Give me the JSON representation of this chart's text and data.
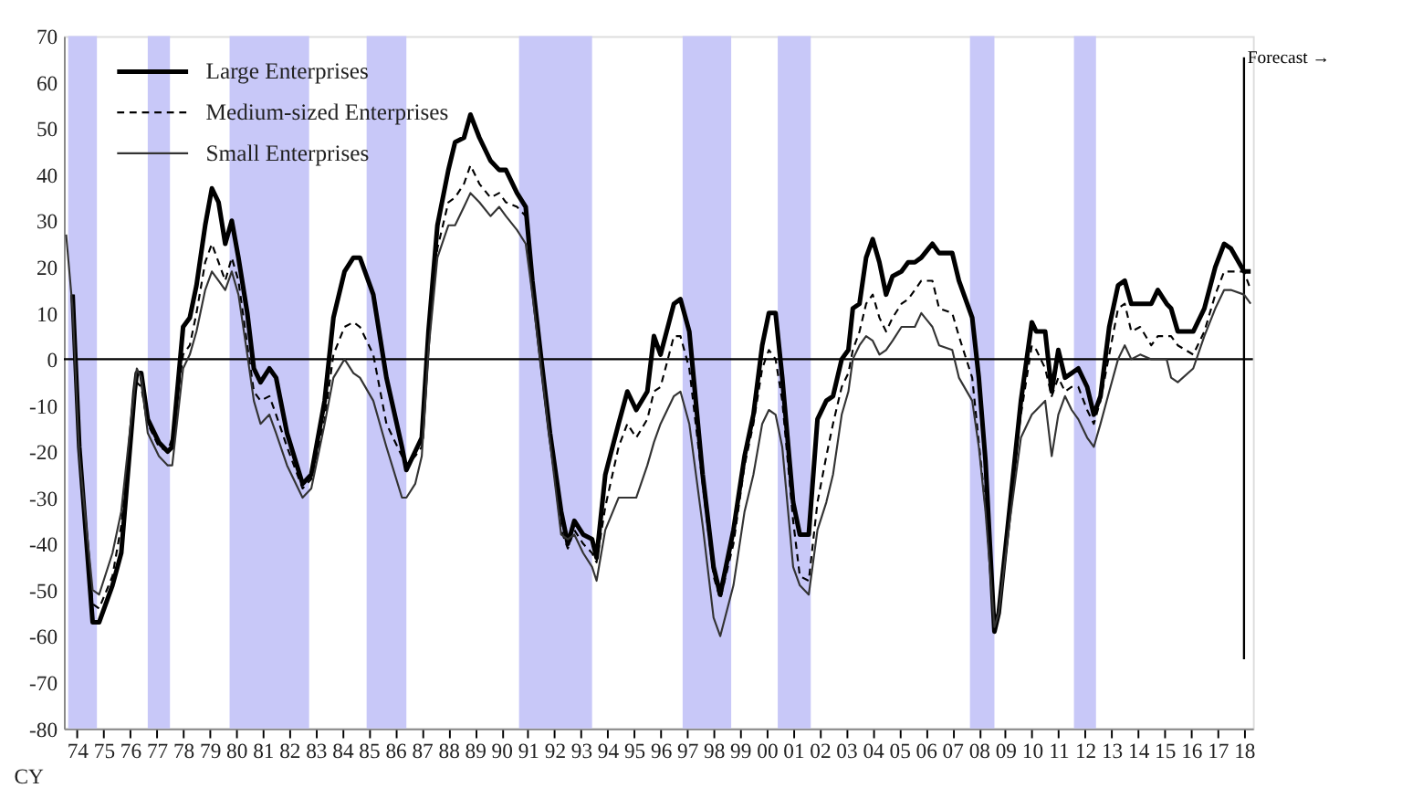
{
  "chart_data": {
    "type": "line",
    "x": [
      "1974-02",
      "1974-05",
      "1974-08",
      "1975-02",
      "1975-05",
      "1975-11",
      "1976-03",
      "1976-09",
      "1976-10",
      "1976-12",
      "1977-03",
      "1977-08",
      "1977-12",
      "1978-02",
      "1978-07",
      "1978-10",
      "1979-01",
      "1979-05",
      "1979-08",
      "1979-11",
      "1980-02",
      "1980-05",
      "1980-08",
      "1980-12",
      "1981-03",
      "1981-06",
      "1981-10",
      "1982-01",
      "1982-06",
      "1983-01",
      "1983-05",
      "1983-11",
      "1984-03",
      "1984-08",
      "1984-12",
      "1985-03",
      "1985-09",
      "1986-03",
      "1986-10",
      "1986-12",
      "1987-04",
      "1987-07",
      "1987-10",
      "1988-02",
      "1988-07",
      "1988-10",
      "1989-02",
      "1989-05",
      "1989-09",
      "1990-02",
      "1990-06",
      "1990-09",
      "1991-02",
      "1991-06",
      "1991-09",
      "1992-01",
      "1992-05",
      "1992-10",
      "1993-01",
      "1993-04",
      "1993-08",
      "1993-12",
      "1994-02",
      "1994-06",
      "1994-12",
      "1995-04",
      "1995-08",
      "1996-01",
      "1996-04",
      "1996-07",
      "1997-01",
      "1997-04",
      "1997-08",
      "1998-02",
      "1998-07",
      "1998-10",
      "1999-04",
      "1999-09",
      "2000-01",
      "2000-05",
      "2000-08",
      "2000-11",
      "2001-02",
      "2001-07",
      "2001-10",
      "2002-02",
      "2002-06",
      "2002-10",
      "2003-01",
      "2003-05",
      "2003-08",
      "2003-10",
      "2004-01",
      "2004-04",
      "2004-07",
      "2004-10",
      "2005-01",
      "2005-04",
      "2005-08",
      "2005-11",
      "2006-02",
      "2006-05",
      "2006-10",
      "2007-01",
      "2007-07",
      "2007-10",
      "2008-04",
      "2008-07",
      "2008-10",
      "2009-02",
      "2009-04",
      "2009-09",
      "2010-02",
      "2010-07",
      "2010-09",
      "2011-01",
      "2011-04",
      "2011-07",
      "2011-10",
      "2012-01",
      "2012-04",
      "2012-08",
      "2012-11",
      "2013-02",
      "2013-06",
      "2013-10",
      "2014-01",
      "2014-04",
      "2014-08",
      "2015-01",
      "2015-04",
      "2015-08",
      "2015-10",
      "2016-01",
      "2016-08",
      "2017-01",
      "2017-06",
      "2017-10",
      "2018-01",
      "2018-07",
      "2018-10"
    ],
    "series": [
      {
        "name": "Large Enterprises",
        "color": "#000000",
        "line_style": "solid",
        "values": [
          null,
          14,
          -19,
          -57,
          -57,
          -49,
          -42,
          -7,
          -3,
          -3,
          -13,
          -18,
          -20,
          -19,
          7,
          9,
          16,
          29,
          37,
          34,
          25,
          30,
          22,
          10,
          -2,
          -5,
          -2,
          -4,
          -16,
          -27,
          -25,
          -9,
          9,
          19,
          22,
          22,
          14,
          -4,
          -19,
          -24,
          -20,
          -17,
          6,
          29,
          41,
          47,
          48,
          53,
          48,
          43,
          41,
          41,
          36,
          33,
          17,
          0,
          -16,
          -33,
          -40,
          -35,
          -38,
          -39,
          -43,
          -25,
          -14,
          -7,
          -11,
          -7,
          5,
          1,
          12,
          13,
          6,
          -25,
          -45,
          -51,
          -37,
          -21,
          -12,
          3,
          10,
          10,
          -4,
          -31,
          -38,
          -38,
          -13,
          -9,
          -8,
          0,
          2,
          11,
          12,
          22,
          26,
          21,
          14,
          18,
          19,
          21,
          21,
          22,
          25,
          23,
          23,
          17,
          9,
          -4,
          -22,
          -59,
          -55,
          -32,
          -9,
          8,
          6,
          6,
          -7,
          2,
          -4,
          -3,
          -2,
          -6,
          -12,
          -8,
          7,
          16,
          17,
          12,
          12,
          12,
          15,
          12,
          11,
          6,
          6,
          11,
          20,
          25,
          24,
          19,
          19
        ]
      },
      {
        "name": "Medium-sized Enterprises",
        "color": "#000000",
        "line_style": "dashed",
        "values": [
          null,
          14,
          -20,
          -53,
          -54,
          -47,
          -36,
          -7,
          -5,
          -6,
          -14,
          -19,
          -20,
          -17,
          1,
          3,
          10,
          21,
          25,
          21,
          17,
          22,
          17,
          3,
          -7,
          -9,
          -8,
          -12,
          -19,
          -28,
          -26,
          -13,
          1,
          7,
          8,
          7,
          1,
          -14,
          -21,
          -23,
          -21,
          -19,
          3,
          24,
          34,
          35,
          38,
          42,
          38,
          35,
          36,
          34,
          33,
          31,
          17,
          0,
          -17,
          -37,
          -41,
          -37,
          -40,
          -42,
          -44,
          -32,
          -19,
          -14,
          -17,
          -13,
          -7,
          -6,
          5,
          5,
          -2,
          -27,
          -47,
          -52,
          -40,
          -23,
          -14,
          -2,
          2,
          0,
          -9,
          -35,
          -47,
          -48,
          -31,
          -21,
          -14,
          -6,
          -3,
          2,
          6,
          12,
          14,
          9,
          6,
          9,
          12,
          13,
          15,
          17,
          17,
          11,
          10,
          5,
          -4,
          -18,
          -32,
          -57,
          -54,
          -31,
          -12,
          3,
          2,
          -2,
          -8,
          -4,
          -7,
          -6,
          -6,
          -11,
          -14,
          -9,
          1,
          11,
          12,
          6,
          7,
          3,
          5,
          5,
          5,
          3,
          1,
          6,
          14,
          19,
          19,
          19,
          15
        ]
      },
      {
        "name": "Small Enterprises",
        "color": "#333333",
        "line_style": "solid",
        "values": [
          27,
          11,
          -21,
          -50,
          -51,
          -42,
          -33,
          -6,
          -2,
          -4,
          -16,
          -21,
          -23,
          -23,
          -2,
          1,
          6,
          15,
          19,
          17,
          15,
          19,
          14,
          1,
          -9,
          -14,
          -12,
          -16,
          -23,
          -30,
          -28,
          -14,
          -4,
          0,
          -3,
          -4,
          -9,
          -19,
          -30,
          -30,
          -27,
          -21,
          2,
          22,
          29,
          29,
          33,
          36,
          34,
          31,
          33,
          31,
          28,
          25,
          14,
          -2,
          -18,
          -38,
          -39,
          -38,
          -42,
          -45,
          -48,
          -37,
          -30,
          -30,
          -30,
          -23,
          -18,
          -14,
          -8,
          -7,
          -14,
          -36,
          -56,
          -60,
          -49,
          -33,
          -25,
          -14,
          -11,
          -12,
          -19,
          -45,
          -49,
          -51,
          -37,
          -31,
          -25,
          -12,
          -7,
          0,
          3,
          5,
          4,
          1,
          2,
          4,
          7,
          7,
          7,
          10,
          7,
          3,
          2,
          -4,
          -9,
          -19,
          -33,
          -58,
          -55,
          -35,
          -17,
          -12,
          -11,
          -9,
          -21,
          -12,
          -8,
          -11,
          -13,
          -17,
          -19,
          -14,
          -7,
          0,
          3,
          0,
          1,
          0,
          0,
          0,
          -4,
          -5,
          -2,
          5,
          11,
          15,
          15,
          14,
          12
        ]
      }
    ],
    "xlim": [
      "1974-01",
      "2018-11"
    ],
    "xticks": [
      {
        "value": "1974-07",
        "label": "74"
      },
      {
        "value": "1975-07",
        "label": "75"
      },
      {
        "value": "1976-07",
        "label": "76"
      },
      {
        "value": "1977-07",
        "label": "77"
      },
      {
        "value": "1978-07",
        "label": "78"
      },
      {
        "value": "1979-07",
        "label": "79"
      },
      {
        "value": "1980-07",
        "label": "80"
      },
      {
        "value": "1981-07",
        "label": "81"
      },
      {
        "value": "1982-07",
        "label": "82"
      },
      {
        "value": "1983-07",
        "label": "83"
      },
      {
        "value": "1984-07",
        "label": "84"
      },
      {
        "value": "1985-07",
        "label": "85"
      },
      {
        "value": "1986-07",
        "label": "86"
      },
      {
        "value": "1987-07",
        "label": "87"
      },
      {
        "value": "1988-07",
        "label": "88"
      },
      {
        "value": "1989-07",
        "label": "89"
      },
      {
        "value": "1990-07",
        "label": "90"
      },
      {
        "value": "1991-07",
        "label": "91"
      },
      {
        "value": "1992-07",
        "label": "92"
      },
      {
        "value": "1993-07",
        "label": "93"
      },
      {
        "value": "1994-07",
        "label": "94"
      },
      {
        "value": "1995-07",
        "label": "95"
      },
      {
        "value": "1996-07",
        "label": "96"
      },
      {
        "value": "1997-07",
        "label": "97"
      },
      {
        "value": "1998-07",
        "label": "98"
      },
      {
        "value": "1999-07",
        "label": "99"
      },
      {
        "value": "2000-07",
        "label": "00"
      },
      {
        "value": "2001-07",
        "label": "01"
      },
      {
        "value": "2002-07",
        "label": "02"
      },
      {
        "value": "2003-07",
        "label": "03"
      },
      {
        "value": "2004-07",
        "label": "04"
      },
      {
        "value": "2005-07",
        "label": "05"
      },
      {
        "value": "2006-07",
        "label": "06"
      },
      {
        "value": "2007-07",
        "label": "07"
      },
      {
        "value": "2008-07",
        "label": "08"
      },
      {
        "value": "2009-07",
        "label": "09"
      },
      {
        "value": "2010-07",
        "label": "10"
      },
      {
        "value": "2011-07",
        "label": "11"
      },
      {
        "value": "2012-07",
        "label": "12"
      },
      {
        "value": "2013-07",
        "label": "13"
      },
      {
        "value": "2014-07",
        "label": "14"
      },
      {
        "value": "2015-07",
        "label": "15"
      },
      {
        "value": "2016-07",
        "label": "16"
      },
      {
        "value": "2017-07",
        "label": "17"
      },
      {
        "value": "2018-07",
        "label": "18"
      }
    ],
    "ylim": [
      -80,
      70
    ],
    "yticks": [
      -80,
      -70,
      -60,
      -50,
      -40,
      -30,
      -20,
      -10,
      0,
      10,
      20,
      30,
      40,
      50,
      60,
      70
    ],
    "bands": [
      {
        "axis": "x",
        "from": "1974-03",
        "to": "1975-04",
        "color": "#c8c8f8"
      },
      {
        "axis": "x",
        "from": "1977-03",
        "to": "1978-01",
        "color": "#c8c8f8"
      },
      {
        "axis": "x",
        "from": "1980-04",
        "to": "1983-04",
        "color": "#c8c8f8"
      },
      {
        "axis": "x",
        "from": "1985-06",
        "to": "1986-12",
        "color": "#c8c8f8"
      },
      {
        "axis": "x",
        "from": "1991-03",
        "to": "1993-12",
        "color": "#c8c8f8"
      },
      {
        "axis": "x",
        "from": "1997-05",
        "to": "1999-03",
        "color": "#c8c8f8"
      },
      {
        "axis": "x",
        "from": "2000-12",
        "to": "2002-03",
        "color": "#c8c8f8"
      },
      {
        "axis": "x",
        "from": "2008-03",
        "to": "2009-02",
        "color": "#c8c8f8"
      },
      {
        "axis": "x",
        "from": "2012-02",
        "to": "2012-12",
        "color": "#c8c8f8"
      }
    ],
    "ref_lines": [
      {
        "axis": "y",
        "value": 0,
        "color": "#000000"
      },
      {
        "axis": "x",
        "value": "2018-07",
        "label": "Forecast →",
        "color": "#000000"
      }
    ],
    "annotations": [
      "CY"
    ],
    "grid": false,
    "legend": "top left"
  }
}
